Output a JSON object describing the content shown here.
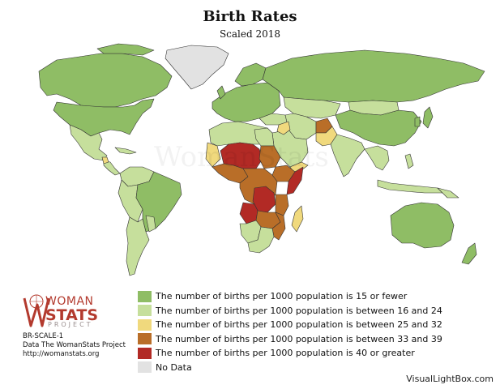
{
  "title": "Birth Rates",
  "subtitle": "Scaled 2018",
  "colors": {
    "c1": "#8fbd65",
    "c2": "#c6df9c",
    "c3": "#f0d97d",
    "c4": "#b96e28",
    "c5": "#b22a25",
    "nodata": "#e2e2e2",
    "border": "#333333",
    "logo": "#b33a2e"
  },
  "legend": [
    {
      "label": "The number of births per 1000 population is 15 or fewer",
      "color": "#8fbd65"
    },
    {
      "label": "The number of births per 1000 population is between 16 and 24",
      "color": "#c6df9c"
    },
    {
      "label": "The number of births per 1000 population is between 25 and 32",
      "color": "#f0d97d"
    },
    {
      "label": "The number of births per 1000 population is between 33 and 39",
      "color": "#b96e28"
    },
    {
      "label": "The number of births per 1000 population is 40 or greater",
      "color": "#b22a25"
    },
    {
      "label": "No Data",
      "color": "#e2e2e2"
    }
  ],
  "logo": {
    "line1": "WOMAN",
    "line2": "STATS",
    "line3": "PROJECT"
  },
  "credits": {
    "code": "BR-SCALE-1",
    "data": "Data The WomanStats Project",
    "url": "http://womanstats.org"
  },
  "source": "VisualLightBox.com"
}
